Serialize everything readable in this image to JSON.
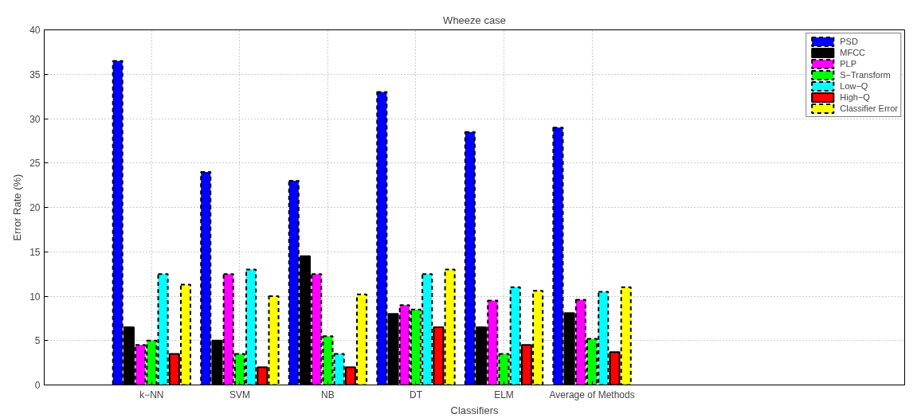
{
  "chart_data": {
    "type": "bar",
    "title": "Wheeze case",
    "xlabel": "Classifiers",
    "ylabel": "Error Rate (%)",
    "categories": [
      "k−NN",
      "SVM",
      "NB",
      "DT",
      "ELM",
      "Average of Methods"
    ],
    "series": [
      {
        "name": "PSD",
        "color": "#0000ff",
        "line_style": "dashed",
        "values": [
          36.5,
          24,
          23,
          33,
          28.5,
          29
        ]
      },
      {
        "name": "MFCC",
        "color": "#000000",
        "line_style": "solid",
        "values": [
          6.5,
          5,
          14.5,
          8,
          6.5,
          8.1
        ]
      },
      {
        "name": "PLP",
        "color": "#ff00ff",
        "line_style": "dashed",
        "values": [
          4.5,
          12.5,
          12.5,
          9,
          9.5,
          9.6
        ]
      },
      {
        "name": "S−Transform",
        "color": "#00ff00",
        "line_style": "dashed",
        "values": [
          5,
          3.5,
          5.5,
          8.5,
          3.5,
          5.2
        ]
      },
      {
        "name": "Low−Q",
        "color": "#00ffff",
        "line_style": "dashed",
        "values": [
          12.5,
          13,
          3.5,
          12.5,
          11,
          10.5
        ]
      },
      {
        "name": "High−Q",
        "color": "#ff0000",
        "line_style": "solid",
        "values": [
          3.5,
          2,
          2,
          6.5,
          4.5,
          3.7
        ]
      },
      {
        "name": "Classifier Error",
        "color": "#ffff00",
        "line_style": "dashed",
        "values": [
          11.3,
          10,
          10.2,
          13,
          10.6,
          11
        ]
      }
    ],
    "ylim": [
      0,
      40
    ],
    "yticks": [
      0,
      5,
      10,
      15,
      20,
      25,
      30,
      35,
      40
    ],
    "grid": true,
    "legend": "top right"
  }
}
